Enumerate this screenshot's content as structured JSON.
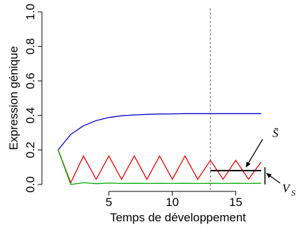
{
  "chart_data": {
    "type": "line",
    "title": "",
    "xlabel": "Temps de développement",
    "ylabel": "Expression génique",
    "xlim": [
      0,
      18
    ],
    "ylim": [
      0,
      1.0
    ],
    "x_ticks": [
      5,
      10,
      15
    ],
    "y_ticks": [
      "0.0",
      "0.2",
      "0.4",
      "0.6",
      "0.8",
      "1.0"
    ],
    "grid": false,
    "legend": "none",
    "series": [
      {
        "color": "#0000cc",
        "x": [
          1,
          2,
          3,
          4,
          5,
          6,
          7,
          8,
          9,
          10,
          11,
          12,
          13,
          14,
          15,
          16,
          17
        ],
        "values": [
          0.2,
          0.29,
          0.34,
          0.37,
          0.388,
          0.398,
          0.403,
          0.406,
          0.408,
          0.409,
          0.41,
          0.41,
          0.41,
          0.41,
          0.41,
          0.41,
          0.41
        ]
      },
      {
        "color": "#ee0000",
        "x": [
          1,
          2,
          3,
          4,
          5,
          6,
          7,
          8,
          9,
          10,
          11,
          12,
          13,
          14,
          15,
          16,
          17
        ],
        "values": [
          0.2,
          0.01,
          0.165,
          0.03,
          0.165,
          0.03,
          0.165,
          0.03,
          0.165,
          0.03,
          0.165,
          0.03,
          0.14,
          0.03,
          0.14,
          0.03,
          0.13
        ]
      },
      {
        "color": "#00aa00",
        "x": [
          1,
          2,
          3,
          4,
          5,
          6,
          7,
          8,
          9,
          10,
          11,
          12,
          13,
          14,
          15,
          16,
          17
        ],
        "values": [
          0.2,
          0.0,
          0.01,
          0.005,
          0.008,
          0.006,
          0.007,
          0.006,
          0.007,
          0.006,
          0.007,
          0.006,
          0.007,
          0.006,
          0.007,
          0.006,
          0.007
        ]
      }
    ],
    "vertical_line": {
      "x": 13,
      "style": "dashed",
      "color": "#555555"
    },
    "annotations": [
      {
        "label": "S̄",
        "sub": "",
        "segment": {
          "x1": 13,
          "x2": 17,
          "y": 0.08
        },
        "arrow_to": {
          "x": 15.8,
          "y": 0.1
        }
      },
      {
        "label": "V",
        "sub": "S",
        "bracket": {
          "x": 17.3,
          "y1": 0.0,
          "y2": 0.1
        },
        "arrow_to": {
          "x": 17.4,
          "y": 0.065
        }
      }
    ]
  }
}
